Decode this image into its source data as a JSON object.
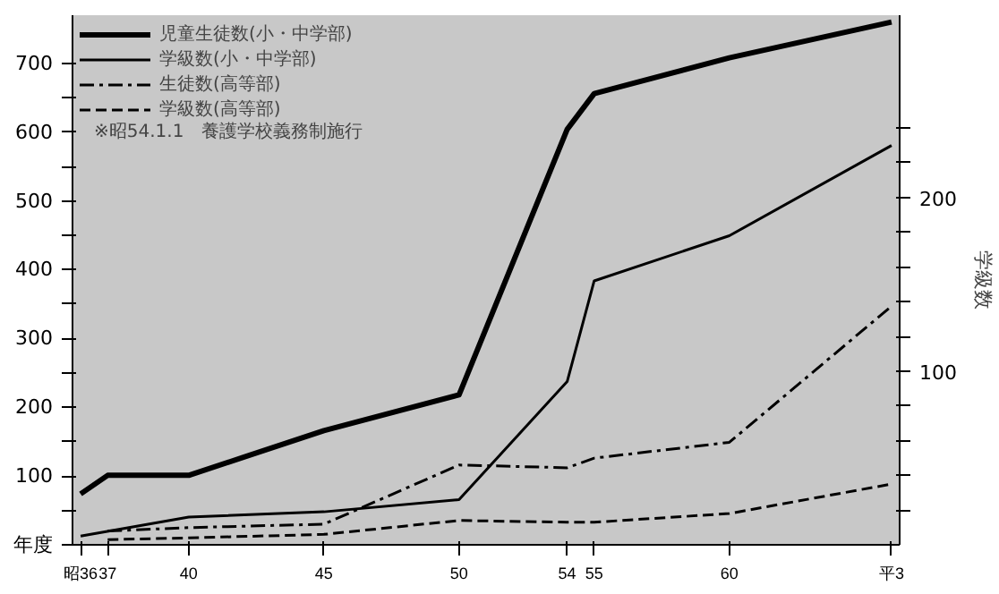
{
  "chart_data": {
    "type": "line",
    "y2label": "学級数",
    "annotations": [
      "※昭54.1.1　養護学校義務制施行"
    ],
    "x": [
      36,
      37,
      40,
      45,
      50,
      54,
      55,
      60,
      66
    ],
    "series": [
      {
        "name": "児童生徒数(小・中学部)",
        "color": "#000000",
        "line_style": "solid",
        "values": [
          74,
          101,
          101,
          166,
          218,
          604,
          656,
          708,
          760
        ]
      },
      {
        "name": "学級数(小・中学部)",
        "color": "#000000",
        "line_style": "solid",
        "axis": "y2",
        "values": [
          5,
          null,
          16,
          19,
          26,
          94,
          152,
          178,
          230
        ]
      },
      {
        "name": "生徒数(高等部)",
        "color": "#000000",
        "line_style": "dashdot",
        "values": [
          null,
          20,
          25,
          30,
          116,
          112,
          126,
          149,
          347
        ]
      },
      {
        "name": "学級数(高等部)",
        "color": "#000000",
        "line_style": "dashed",
        "axis": "y2",
        "values": [
          null,
          3,
          4,
          6,
          14,
          13,
          13,
          18,
          35
        ]
      }
    ],
    "xlim": [
      35.7,
      66.3
    ],
    "ylim": [
      0,
      770
    ],
    "y2lim": [
      0,
      305
    ],
    "xticks": [
      {
        "value": 36,
        "label": "昭36"
      },
      37,
      40,
      45,
      50,
      54,
      55,
      60,
      {
        "value": 66,
        "label": "平3"
      }
    ],
    "yticks": [
      {
        "value": 0,
        "label": "年度"
      },
      {
        "value": 50,
        "label": null
      },
      100,
      {
        "value": 150,
        "label": null
      },
      200,
      {
        "value": 250,
        "label": null
      },
      300,
      {
        "value": 350,
        "label": null
      },
      400,
      {
        "value": 450,
        "label": null
      },
      500,
      {
        "value": 550,
        "label": null
      },
      600,
      {
        "value": 650,
        "label": null
      },
      700
    ],
    "y2ticks": [
      {
        "value": 20,
        "label": null
      },
      {
        "value": 40,
        "label": null
      },
      {
        "value": 60,
        "label": null
      },
      {
        "value": 80,
        "label": null
      },
      100,
      {
        "value": 120,
        "label": null
      },
      {
        "value": 140,
        "label": null
      },
      {
        "value": 160,
        "label": null
      },
      {
        "value": 180,
        "label": null
      },
      200,
      {
        "value": 220,
        "label": null
      },
      {
        "value": 240,
        "label": null
      }
    ],
    "grid": false,
    "legend": "top left"
  }
}
